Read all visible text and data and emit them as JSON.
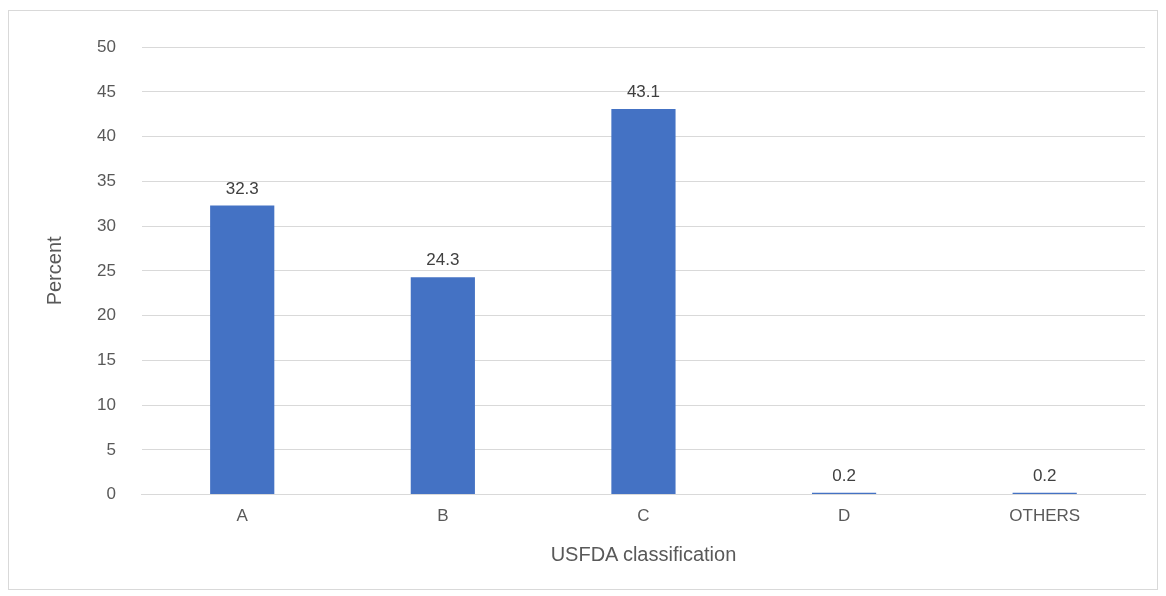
{
  "chart_data": {
    "type": "bar",
    "xlabel": "USFDA classification",
    "ylabel": "Percent",
    "categories": [
      "A",
      "B",
      "C",
      "D",
      "OTHERS"
    ],
    "values": [
      32.3,
      24.3,
      43.1,
      0.2,
      0.2
    ],
    "color": "#4472c4",
    "ylim": [
      0,
      50
    ],
    "yticks": [
      0,
      5,
      10,
      15,
      20,
      25,
      30,
      35,
      40,
      45,
      50
    ],
    "grid": "y",
    "data_labels": true,
    "legend": false
  }
}
